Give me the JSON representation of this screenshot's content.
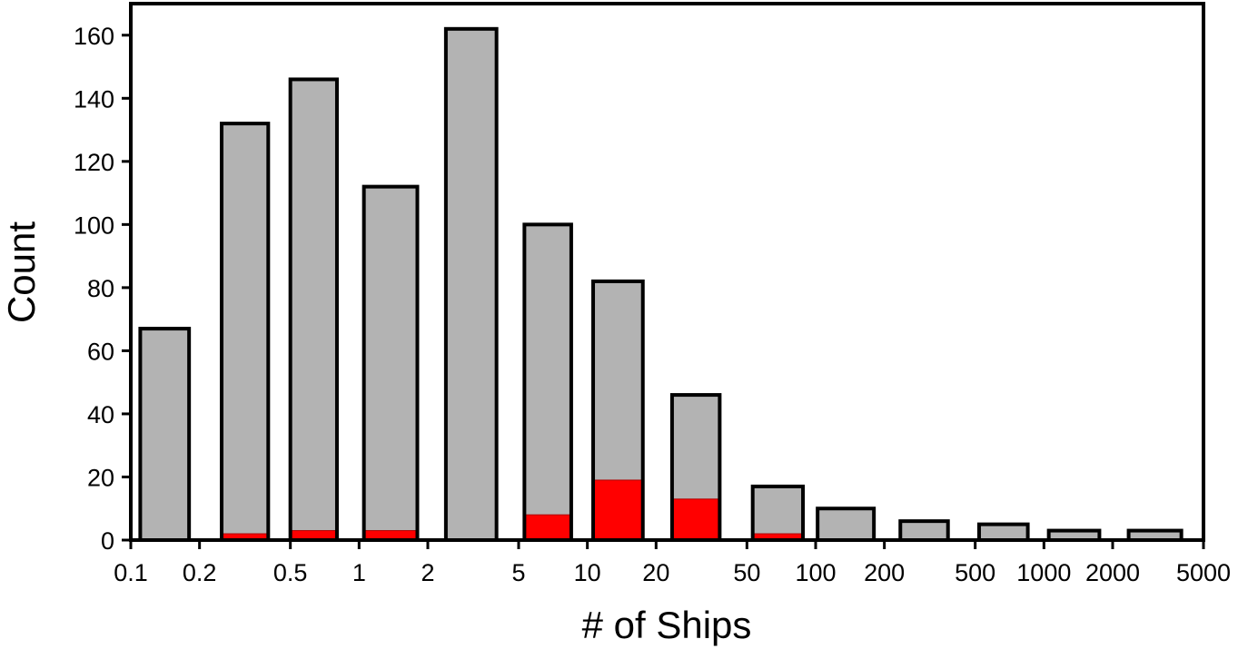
{
  "chart_data": {
    "type": "bar",
    "xscale": "log",
    "xlabel": "# of Ships",
    "ylabel": "Count",
    "xlim": [
      0.1,
      5000
    ],
    "ylim": [
      0,
      170
    ],
    "grid": false,
    "xticks": [
      0.1,
      0.2,
      0.5,
      1,
      2,
      5,
      10,
      20,
      50,
      100,
      200,
      500,
      1000,
      2000,
      5000
    ],
    "xtick_labels": [
      "0.1",
      "0.2",
      "0.5",
      "1",
      "2",
      "5",
      "10",
      "20",
      "50",
      "100",
      "200",
      "500",
      "1000",
      "2000",
      "5000"
    ],
    "yticks": [
      0,
      20,
      40,
      60,
      80,
      100,
      120,
      140,
      160
    ],
    "ytick_labels": [
      "0",
      "20",
      "40",
      "60",
      "80",
      "100",
      "120",
      "140",
      "160"
    ],
    "bin_edges": [
      0.1,
      0.2,
      0.4,
      0.8,
      1.6,
      3.2,
      6.4,
      12.8,
      25.6,
      51.2,
      102.4,
      204.8,
      409.6,
      819.2,
      1638.4,
      3276.8,
      5000
    ],
    "bars": [
      {
        "x0": 0.11,
        "x1": 0.18,
        "total": 67,
        "highlight": 0
      },
      {
        "x0": 0.25,
        "x1": 0.4,
        "total": 132,
        "highlight": 2
      },
      {
        "x0": 0.5,
        "x1": 0.8,
        "total": 146,
        "highlight": 3
      },
      {
        "x0": 1.05,
        "x1": 1.8,
        "total": 112,
        "highlight": 3
      },
      {
        "x0": 2.4,
        "x1": 4.0,
        "total": 162,
        "highlight": 0
      },
      {
        "x0": 5.3,
        "x1": 8.5,
        "total": 100,
        "highlight": 8
      },
      {
        "x0": 10.6,
        "x1": 17.5,
        "total": 82,
        "highlight": 19
      },
      {
        "x0": 23.5,
        "x1": 38.0,
        "total": 46,
        "highlight": 13
      },
      {
        "x0": 53.0,
        "x1": 88.0,
        "total": 17,
        "highlight": 2
      },
      {
        "x0": 102,
        "x1": 180,
        "total": 10,
        "highlight": 0
      },
      {
        "x0": 235,
        "x1": 380,
        "total": 6,
        "highlight": 0
      },
      {
        "x0": 520,
        "x1": 850,
        "total": 5,
        "highlight": 0
      },
      {
        "x0": 1050,
        "x1": 1750,
        "total": 3,
        "highlight": 0
      },
      {
        "x0": 2350,
        "x1": 4000,
        "total": 3,
        "highlight": 0
      }
    ],
    "colors": {
      "total_fill": "#b3b3b3",
      "highlight_fill": "#ff0000",
      "outline": "#000000"
    }
  }
}
